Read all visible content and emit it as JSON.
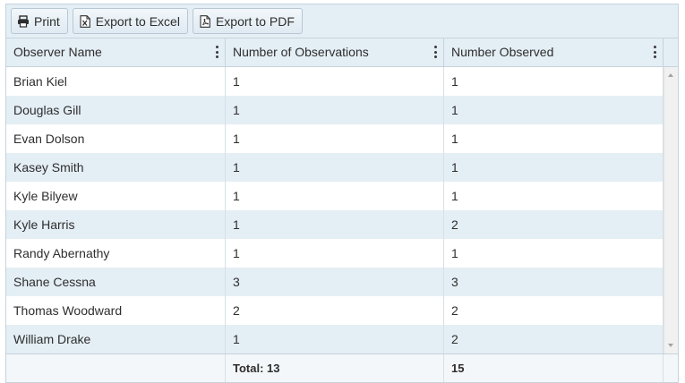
{
  "toolbar": {
    "print_label": "Print",
    "excel_label": "Export to Excel",
    "pdf_label": "Export to PDF"
  },
  "columns": [
    "Observer Name",
    "Number of Observations",
    "Number Observed"
  ],
  "rows": [
    [
      "Brian Kiel",
      "1",
      "1"
    ],
    [
      "Douglas Gill",
      "1",
      "1"
    ],
    [
      "Evan Dolson",
      "1",
      "1"
    ],
    [
      "Kasey Smith",
      "1",
      "1"
    ],
    [
      "Kyle Bilyew",
      "1",
      "1"
    ],
    [
      "Kyle Harris",
      "1",
      "2"
    ],
    [
      "Randy Abernathy",
      "1",
      "1"
    ],
    [
      "Shane Cessna",
      "3",
      "3"
    ],
    [
      "Thomas Woodward",
      "2",
      "2"
    ],
    [
      "William Drake",
      "1",
      "2"
    ]
  ],
  "footer": {
    "name": "",
    "observations_total": "Total: 13",
    "observed_total": "15"
  },
  "icons": {
    "print": "printer-icon",
    "excel": "excel-file-icon",
    "pdf": "pdf-file-icon",
    "column_menu": "kebab-menu-icon"
  },
  "colors": {
    "header_bg": "#e4eef5",
    "alt_row_bg": "#e4eef5",
    "border": "#c5d3dc"
  }
}
